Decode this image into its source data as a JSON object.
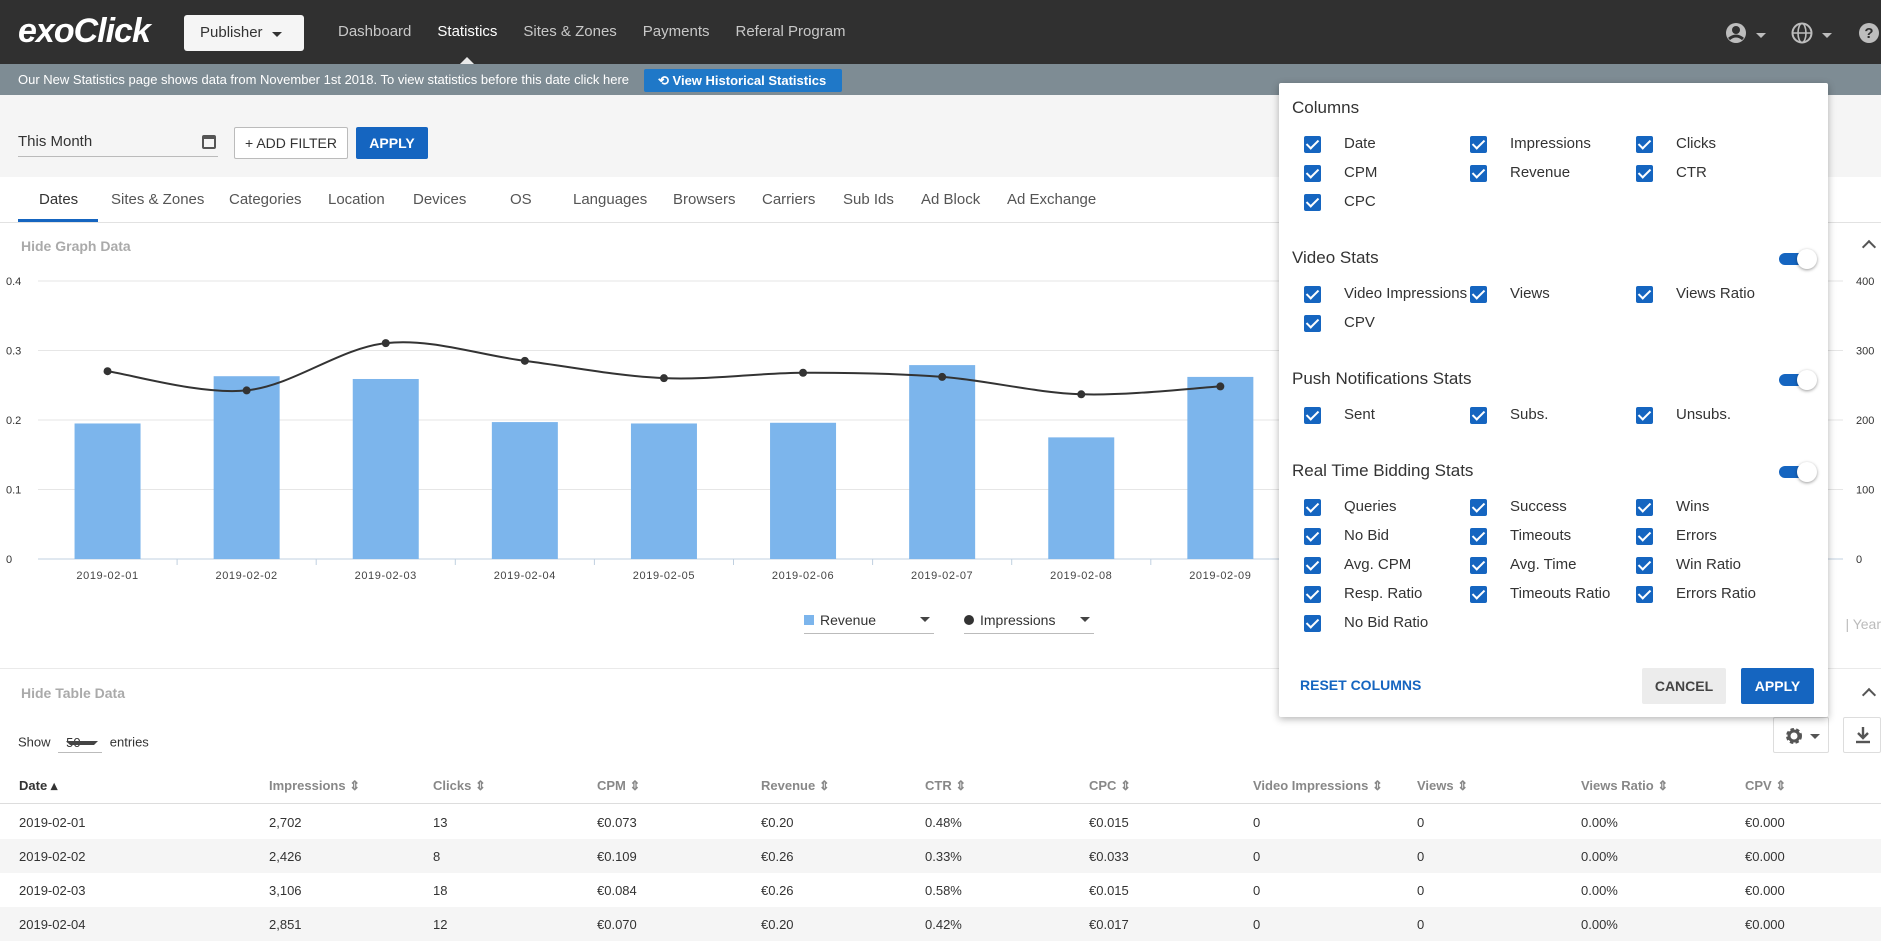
{
  "brand": {
    "logo_text": "exoClick"
  },
  "nav": {
    "role_selector": "Publisher",
    "links": [
      "Dashboard",
      "Statistics",
      "Sites & Zones",
      "Payments",
      "Referal Program"
    ],
    "active": "Statistics"
  },
  "infobar": {
    "message": "Our New Statistics page shows data from November 1st 2018. To view statistics before this date click here",
    "button": "View Historical Statistics"
  },
  "filters": {
    "date_range": "This Month",
    "add_filter": "+ ADD FILTER",
    "apply": "APPLY"
  },
  "tabs": [
    "Dates",
    "Sites & Zones",
    "Categories",
    "Location",
    "Devices",
    "OS",
    "Languages",
    "Browsers",
    "Carriers",
    "Sub Ids",
    "Ad Block",
    "Ad Exchange"
  ],
  "graph": {
    "hide_label": "Hide Graph Data",
    "series_selectors": [
      "Revenue",
      "Impressions"
    ],
    "period_visible": "| Year",
    "colors": {
      "revenue": "#7cb5ec",
      "impressions": "#333333"
    }
  },
  "chart_data": {
    "type": "bar",
    "categories": [
      "2019-02-01",
      "2019-02-02",
      "2019-02-03",
      "2019-02-04",
      "2019-02-05",
      "2019-02-06",
      "2019-02-07",
      "2019-02-08",
      "2019-02-09"
    ],
    "series": [
      {
        "name": "Revenue",
        "type": "bar",
        "axis": "left",
        "values": [
          0.195,
          0.263,
          0.259,
          0.197,
          0.195,
          0.196,
          0.279,
          0.175,
          0.262
        ]
      },
      {
        "name": "Impressions",
        "type": "line",
        "axis": "right",
        "values": [
          2702,
          2426,
          3106,
          2851,
          2602,
          2680,
          2620,
          2370,
          2483
        ]
      }
    ],
    "y_left": {
      "ticks": [
        "0",
        "0.1",
        "0.2",
        "0.3",
        "0.4"
      ],
      "ylim": [
        0,
        0.4
      ]
    },
    "y_right": {
      "ticks_visible": [
        "0",
        "100",
        "200",
        "300",
        "400"
      ],
      "ylim": [
        0,
        4000
      ]
    },
    "grid": true
  },
  "table": {
    "hide_label": "Hide Table Data",
    "show_label": "Show",
    "entries_label": "entries",
    "page_size": "50",
    "columns": [
      "Date",
      "Impressions",
      "Clicks",
      "CPM",
      "Revenue",
      "CTR",
      "CPC",
      "Video Impressions",
      "Views",
      "Views Ratio",
      "CPV"
    ],
    "sorted_column": "Date",
    "rows": [
      [
        "2019-02-01",
        "2,702",
        "13",
        "€0.073",
        "€0.20",
        "0.48%",
        "€0.015",
        "0",
        "0",
        "0.00%",
        "€0.000"
      ],
      [
        "2019-02-02",
        "2,426",
        "8",
        "€0.109",
        "€0.26",
        "0.33%",
        "€0.033",
        "0",
        "0",
        "0.00%",
        "€0.000"
      ],
      [
        "2019-02-03",
        "3,106",
        "18",
        "€0.084",
        "€0.26",
        "0.58%",
        "€0.015",
        "0",
        "0",
        "0.00%",
        "€0.000"
      ],
      [
        "2019-02-04",
        "2,851",
        "12",
        "€0.070",
        "€0.20",
        "0.42%",
        "€0.017",
        "0",
        "0",
        "0.00%",
        "€0.000"
      ]
    ]
  },
  "columns_popup": {
    "sections": [
      {
        "title": "Columns",
        "toggle": false,
        "items": [
          "Date",
          "Impressions",
          "Clicks",
          "CPM",
          "Revenue",
          "CTR",
          "CPC"
        ]
      },
      {
        "title": "Video Stats",
        "toggle": true,
        "items": [
          "Video Impressions",
          "Views",
          "Views Ratio",
          "CPV"
        ]
      },
      {
        "title": "Push Notifications Stats",
        "toggle": true,
        "items": [
          "Sent",
          "Subs.",
          "Unsubs."
        ]
      },
      {
        "title": "Real Time Bidding Stats",
        "toggle": true,
        "items": [
          "Queries",
          "Success",
          "Wins",
          "No Bid",
          "Timeouts",
          "Errors",
          "Avg. CPM",
          "Avg. Time",
          "Win Ratio",
          "Resp. Ratio",
          "Timeouts Ratio",
          "Errors Ratio",
          "No Bid Ratio"
        ]
      }
    ],
    "reset": "RESET COLUMNS",
    "cancel": "CANCEL",
    "apply": "APPLY"
  }
}
